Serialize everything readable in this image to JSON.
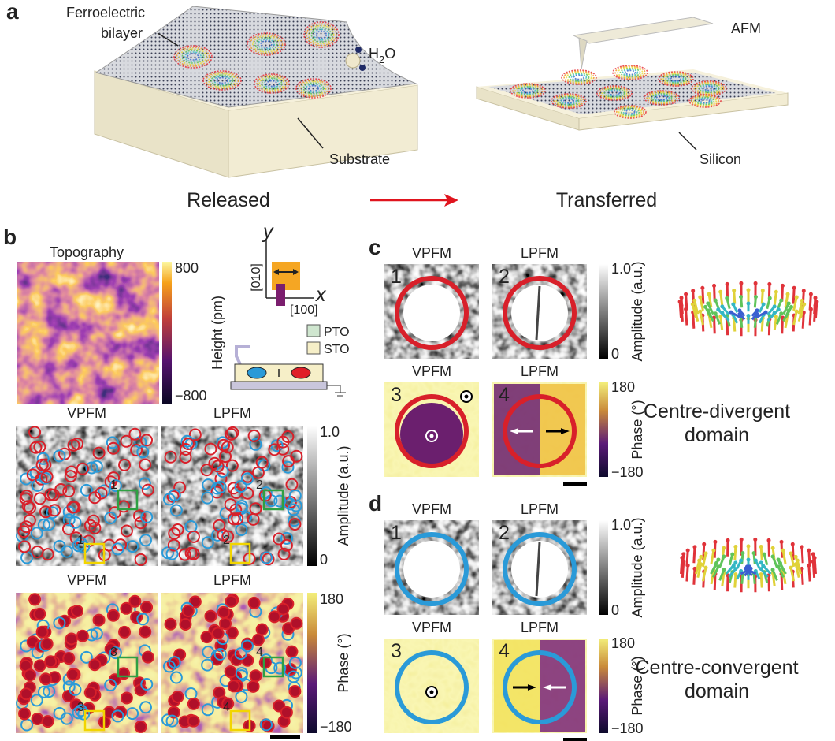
{
  "panel_a": {
    "label": "a",
    "film_label": [
      "Ferroelectric",
      "bilayer"
    ],
    "water": {
      "base": "H",
      "sub": "2",
      "tail": "O"
    },
    "tip_label": "AFM",
    "substrate_label": "Substrate",
    "silicon_label": "Silicon",
    "left_caption": "Released",
    "right_caption": "Transferred"
  },
  "panel_b": {
    "label": "b",
    "topography": {
      "title": "Topography",
      "colorbar_max": "800",
      "colorbar_min": "−800",
      "colorbar_label": "Height (pm)"
    },
    "axes": {
      "y": "y",
      "x": "x",
      "y_dir": "[010]",
      "x_dir": "[100]"
    },
    "layers": [
      "PTO",
      "STO"
    ],
    "amplitude_row": {
      "titles": [
        "VPFM",
        "LPFM"
      ],
      "markers": [
        "1",
        "2"
      ],
      "colorbar_max": "1.0",
      "colorbar_min": "0",
      "colorbar_label": "Amplitude (a.u.)"
    },
    "phase_row": {
      "titles": [
        "VPFM",
        "LPFM"
      ],
      "markers": [
        "3",
        "4"
      ],
      "colorbar_max": "180",
      "colorbar_min": "−180",
      "colorbar_label": "Phase (°)"
    }
  },
  "panel_c": {
    "label": "c",
    "titles": [
      "VPFM",
      "LPFM",
      "VPFM",
      "LPFM"
    ],
    "indices": [
      "1",
      "2",
      "3",
      "4"
    ],
    "amplitude_bar": {
      "max": "1.0",
      "min": "0",
      "label": "Amplitude (a.u.)"
    },
    "phase_bar": {
      "max": "180",
      "min": "−180",
      "label": "Phase (°)"
    },
    "domain_caption": [
      "Centre-divergent",
      "domain"
    ]
  },
  "panel_d": {
    "label": "d",
    "titles": [
      "VPFM",
      "LPFM",
      "VPFM",
      "LPFM"
    ],
    "indices": [
      "1",
      "2",
      "3",
      "4"
    ],
    "amplitude_bar": {
      "max": "1.0",
      "min": "0",
      "label": "Amplitude (a.u.)"
    },
    "phase_bar": {
      "max": "180",
      "min": "−180",
      "label": "Phase (°)"
    },
    "domain_caption": [
      "Centre-convergent",
      "domain"
    ]
  }
}
